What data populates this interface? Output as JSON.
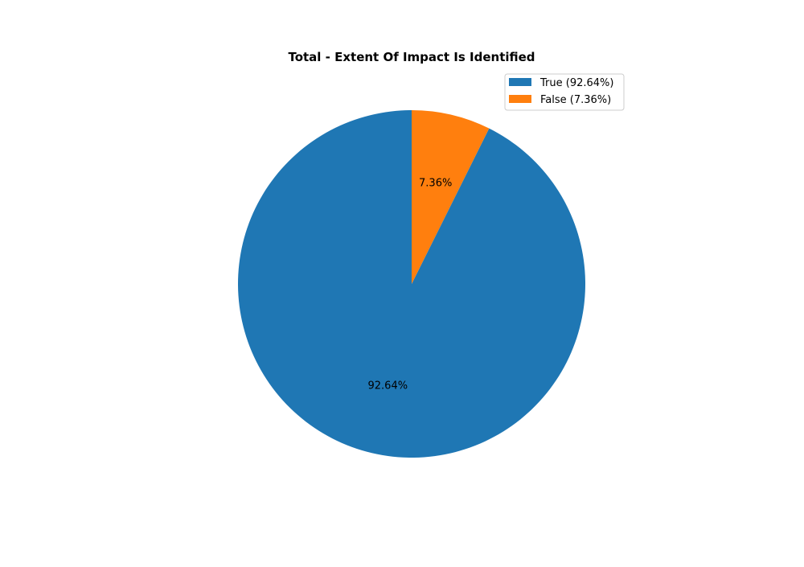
{
  "chart_data": {
    "type": "pie",
    "title": "Total - Extent Of Impact Is Identified",
    "slices": [
      {
        "label": "True",
        "value": 92.64,
        "pct_label": "92.64%",
        "legend": "True (92.64%)",
        "color": "#1f77b4"
      },
      {
        "label": "False",
        "value": 7.36,
        "pct_label": "7.36%",
        "legend": "False (7.36%)",
        "color": "#ff7f0e"
      }
    ],
    "start_angle": "90 degrees (top), counterclockwise",
    "legend_position": "top-right"
  }
}
